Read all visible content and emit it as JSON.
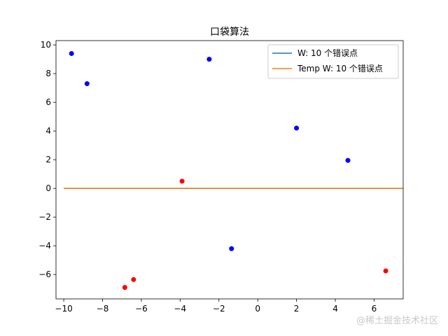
{
  "chart_data": {
    "type": "scatter",
    "title": "口袋算法",
    "xlabel": "",
    "ylabel": "",
    "xlim": [
      -10.4,
      7.5
    ],
    "ylim": [
      -7.7,
      10.3
    ],
    "xticks": [
      -10,
      -8,
      -6,
      -4,
      -2,
      0,
      2,
      4,
      6
    ],
    "yticks": [
      -6,
      -4,
      -2,
      0,
      2,
      4,
      6,
      8,
      10
    ],
    "grid": false,
    "legend_position": "top-right",
    "points": [
      {
        "x": -9.6,
        "y": 9.4,
        "class": "blue"
      },
      {
        "x": -8.8,
        "y": 7.3,
        "class": "blue"
      },
      {
        "x": -2.5,
        "y": 9.0,
        "class": "blue"
      },
      {
        "x": 2.0,
        "y": 4.2,
        "class": "blue"
      },
      {
        "x": 4.65,
        "y": 1.95,
        "class": "blue"
      },
      {
        "x": -1.35,
        "y": -4.2,
        "class": "blue"
      },
      {
        "x": -3.9,
        "y": 0.5,
        "class": "red"
      },
      {
        "x": -6.85,
        "y": -6.9,
        "class": "red"
      },
      {
        "x": -6.4,
        "y": -6.35,
        "class": "red"
      },
      {
        "x": 6.6,
        "y": -5.75,
        "class": "red"
      }
    ],
    "lines": [
      {
        "name": "W: 10 个错误点",
        "color": "#1f77b4",
        "x": [
          -10,
          7.5
        ],
        "y": [
          0,
          0
        ]
      },
      {
        "name": "Temp W: 10 个错误点",
        "color": "#ff7f0e",
        "x": [
          -10,
          7.5
        ],
        "y": [
          0,
          0
        ]
      }
    ],
    "point_colors": {
      "blue": "#0000ff",
      "red": "#ff0000"
    }
  },
  "watermark": "@稀土掘金技术社区"
}
